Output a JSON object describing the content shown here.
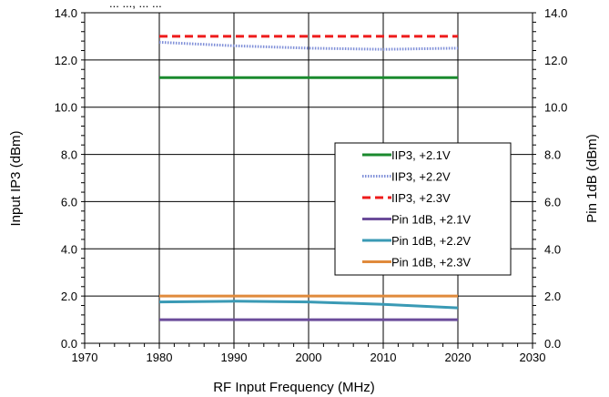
{
  "chart_data": {
    "type": "line",
    "title": "",
    "top_caption_fragment": "... ..., ... ...",
    "xlabel": "RF Input Frequency (MHz)",
    "ylabel_left": "Input IP3 (dBm)",
    "ylabel_right": "Pin 1dB (dBm)",
    "xlim": [
      1970,
      2030
    ],
    "ylim": [
      0,
      14
    ],
    "x_ticks": [
      1970,
      1980,
      1990,
      2000,
      2010,
      2020,
      2030
    ],
    "y_ticks": [
      0.0,
      2.0,
      4.0,
      6.0,
      8.0,
      10.0,
      12.0,
      14.0
    ],
    "x_tick_labels": [
      "1970",
      "1980",
      "1990",
      "2000",
      "2010",
      "2020",
      "2030"
    ],
    "y_tick_labels": [
      "0.0",
      "2.0",
      "4.0",
      "6.0",
      "8.0",
      "10.0",
      "12.0",
      "14.0"
    ],
    "grid": true,
    "legend_position": "right-center",
    "series": [
      {
        "name": "IIP3, +2.1V",
        "color": "#1a8a2e",
        "style": "solid",
        "x": [
          1980,
          1990,
          2000,
          2010,
          2020
        ],
        "y": [
          11.25,
          11.25,
          11.25,
          11.25,
          11.25
        ]
      },
      {
        "name": "IIP3, +2.2V",
        "color": "#7f8fd8",
        "style": "dotted",
        "x": [
          1980,
          1990,
          2000,
          2010,
          2020
        ],
        "y": [
          12.75,
          12.6,
          12.5,
          12.45,
          12.5
        ]
      },
      {
        "name": "IIP3, +2.3V",
        "color": "#ee1c1c",
        "style": "dashed",
        "x": [
          1980,
          1990,
          2000,
          2010,
          2020
        ],
        "y": [
          13.0,
          13.0,
          13.0,
          13.0,
          13.0
        ]
      },
      {
        "name": "Pin 1dB, +2.1V",
        "color": "#6b4c9a",
        "style": "solid",
        "x": [
          1980,
          1990,
          2000,
          2010,
          2020
        ],
        "y": [
          1.0,
          1.0,
          1.0,
          1.0,
          1.0
        ]
      },
      {
        "name": "Pin 1dB, +2.2V",
        "color": "#3a9ab5",
        "style": "solid",
        "x": [
          1980,
          1990,
          2000,
          2010,
          2020
        ],
        "y": [
          1.75,
          1.78,
          1.75,
          1.65,
          1.5
        ]
      },
      {
        "name": "Pin 1dB, +2.3V",
        "color": "#e08a3c",
        "style": "solid",
        "x": [
          1980,
          1990,
          2000,
          2010,
          2020
        ],
        "y": [
          2.0,
          2.0,
          2.0,
          2.0,
          2.0
        ]
      }
    ]
  }
}
